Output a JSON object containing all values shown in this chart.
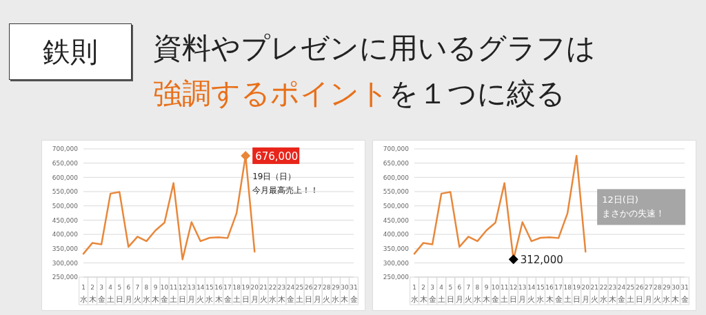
{
  "chart_data": [
    {
      "type": "other",
      "title": "鉄則",
      "subtitle": "資料やプレゼンに用いるグラフは",
      "annotations": [
        "強調するポイント",
        "を１つに絞る"
      ]
    },
    {
      "type": "line",
      "categories": [
        "1\n水",
        "2\n木",
        "3\n金",
        "4\n土",
        "5\n日",
        "6\n月",
        "7\n火",
        "8\n水",
        "9\n木",
        "10\n金",
        "11\n土",
        "12\n日",
        "13\n月",
        "14\n火",
        "15\n水",
        "16\n木",
        "17\n金",
        "18\n土",
        "19\n日",
        "20\n月",
        "21\n火",
        "22\n水",
        "23\n木",
        "24\n金",
        "25\n土",
        "26\n日",
        "27\n月",
        "28\n火",
        "29\n水",
        "30\n木",
        "31\n金"
      ],
      "series": [
        {
          "type": "line",
          "color": "#e8873a",
          "marker": "none",
          "values": [
            332000,
            370000,
            365000,
            543000,
            549000,
            356000,
            392000,
            376000,
            414000,
            441000,
            580000,
            312000,
            443000,
            376000,
            388000,
            390000,
            387000,
            474000,
            676000,
            339000,
            null,
            null,
            null,
            null,
            null,
            null,
            null,
            null,
            null,
            null,
            null
          ]
        },
        {
          "type": "scatter",
          "color": "#e8873a",
          "marker": "diamond",
          "values": [
            null,
            null,
            null,
            null,
            null,
            null,
            null,
            null,
            null,
            null,
            null,
            null,
            null,
            null,
            null,
            null,
            null,
            null,
            676000,
            null,
            null,
            null,
            null,
            null,
            null,
            null,
            null,
            null,
            null,
            null,
            null
          ],
          "value_labels": [
            null,
            null,
            null,
            null,
            null,
            null,
            null,
            null,
            null,
            null,
            null,
            null,
            null,
            null,
            null,
            null,
            null,
            null,
            "676,000",
            null,
            null,
            null,
            null,
            null,
            null,
            null,
            null,
            null,
            null,
            null,
            null
          ]
        }
      ],
      "ylim": [
        250000,
        700000
      ],
      "yticks": [
        {
          "value": 250000,
          "label": "250,000"
        },
        {
          "value": 300000,
          "label": "300,000"
        },
        {
          "value": 350000,
          "label": "350,000"
        },
        {
          "value": 400000,
          "label": "400,000"
        },
        {
          "value": 450000,
          "label": "450,000"
        },
        {
          "value": 500000,
          "label": "500,000"
        },
        {
          "value": 550000,
          "label": "550,000"
        },
        {
          "value": 600000,
          "label": "600,000"
        },
        {
          "value": 650000,
          "label": "650,000"
        },
        {
          "value": 700000,
          "label": "700,000"
        }
      ],
      "grid": "y",
      "line_style": "solid",
      "annotations": [
        "19日（日）",
        "今月最高売上！！"
      ]
    },
    {
      "type": "line",
      "categories": [
        "1\n水",
        "2\n木",
        "3\n金",
        "4\n土",
        "5\n日",
        "6\n月",
        "7\n火",
        "8\n水",
        "9\n木",
        "10\n金",
        "11\n土",
        "12\n日",
        "13\n月",
        "14\n火",
        "15\n水",
        "16\n木",
        "17\n金",
        "18\n土",
        "19\n日",
        "20\n月",
        "21\n火",
        "22\n水",
        "23\n木",
        "24\n金",
        "25\n土",
        "26\n日",
        "27\n月",
        "28\n火",
        "29\n水",
        "30\n木",
        "31\n金"
      ],
      "series": [
        {
          "type": "line",
          "color": "#e8873a",
          "marker": "none",
          "values": [
            332000,
            370000,
            365000,
            543000,
            549000,
            356000,
            392000,
            376000,
            414000,
            441000,
            580000,
            312000,
            443000,
            376000,
            388000,
            390000,
            387000,
            474000,
            676000,
            339000,
            null,
            null,
            null,
            null,
            null,
            null,
            null,
            null,
            null,
            null,
            null
          ]
        },
        {
          "type": "scatter",
          "color": "#000000",
          "marker": "diamond",
          "values": [
            null,
            null,
            null,
            null,
            null,
            null,
            null,
            null,
            null,
            null,
            null,
            312000,
            null,
            null,
            null,
            null,
            null,
            null,
            null,
            null,
            null,
            null,
            null,
            null,
            null,
            null,
            null,
            null,
            null,
            null,
            null
          ],
          "value_labels": [
            null,
            null,
            null,
            null,
            null,
            null,
            null,
            null,
            null,
            null,
            null,
            "312,000",
            null,
            null,
            null,
            null,
            null,
            null,
            null,
            null,
            null,
            null,
            null,
            null,
            null,
            null,
            null,
            null,
            null,
            null,
            null
          ]
        }
      ],
      "ylim": [
        250000,
        700000
      ],
      "yticks": [
        {
          "value": 250000,
          "label": "250,000"
        },
        {
          "value": 300000,
          "label": "300,000"
        },
        {
          "value": 350000,
          "label": "350,000"
        },
        {
          "value": 400000,
          "label": "400,000"
        },
        {
          "value": 450000,
          "label": "450,000"
        },
        {
          "value": 500000,
          "label": "500,000"
        },
        {
          "value": 550000,
          "label": "550,000"
        },
        {
          "value": 600000,
          "label": "600,000"
        },
        {
          "value": 650000,
          "label": "650,000"
        },
        {
          "value": 700000,
          "label": "700,000"
        }
      ],
      "grid": "y",
      "line_style": "solid",
      "annotations": [
        "12日(日)",
        "まさかの失速！"
      ]
    }
  ]
}
